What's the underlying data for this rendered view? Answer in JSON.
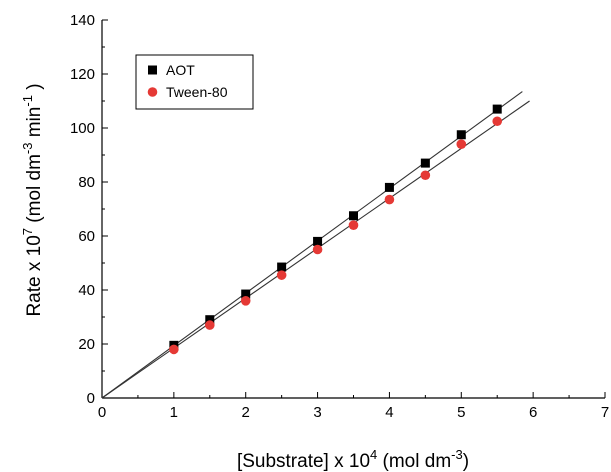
{
  "chart_data": {
    "type": "scatter",
    "xlim": [
      0,
      7
    ],
    "ylim": [
      0,
      140
    ],
    "xticks": [
      0,
      1,
      2,
      3,
      4,
      5,
      6,
      7
    ],
    "yticks": [
      0,
      20,
      40,
      60,
      80,
      100,
      120,
      140
    ],
    "xlabel": {
      "prefix": "[Substrate] x 10",
      "exp": "4",
      "middle": " (mol dm",
      "exp2": "-3",
      "suffix": ")"
    },
    "ylabel": {
      "prefix": "Rate x 10",
      "exp": "7",
      "middle": " (mol dm",
      "exp2": "-3",
      "middle2": " min",
      "exp3": "-1",
      "suffix": " )"
    },
    "legend_position": "top-left",
    "grid": false,
    "series": [
      {
        "name": "AOT",
        "marker": "square",
        "color": "#000000",
        "x": [
          1.0,
          1.5,
          2.0,
          2.5,
          3.0,
          3.5,
          4.0,
          4.5,
          5.0,
          5.5
        ],
        "y": [
          19.5,
          29.0,
          38.5,
          48.5,
          58.0,
          67.5,
          78.0,
          87.0,
          97.5,
          107.0
        ],
        "fit_line": {
          "x": [
            0,
            5.85
          ],
          "y": [
            0,
            113.5
          ]
        }
      },
      {
        "name": "Tween-80",
        "marker": "circle",
        "color": "#e53935",
        "x": [
          1.0,
          1.5,
          2.0,
          2.5,
          3.0,
          3.5,
          4.0,
          4.5,
          5.0,
          5.5
        ],
        "y": [
          18.0,
          27.0,
          36.0,
          45.5,
          55.0,
          64.0,
          73.5,
          82.5,
          94.0,
          102.5
        ],
        "fit_line": {
          "x": [
            0,
            5.95
          ],
          "y": [
            0,
            110.0
          ]
        }
      }
    ]
  }
}
